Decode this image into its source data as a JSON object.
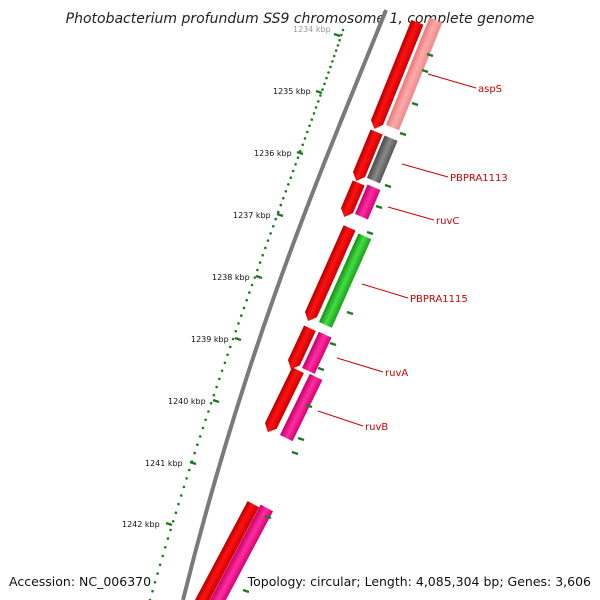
{
  "title": "Photobacterium profundum SS9 chromosome 1, complete genome",
  "accession": "Accession: NC_006370",
  "topology": "Topology: circular; Length: 4,085,304 bp; Genes: 3,606",
  "colors": {
    "backbone": "#7a7a7a",
    "tick": "#1e7a1e",
    "dots": "#1e7a1e",
    "label": "#cc0000",
    "cds_red": "#ff0000",
    "gene_pink": "#ff1a8c",
    "gene_salmon": "#ff9a9a",
    "gene_gray": "#6e6e6e",
    "gene_green": "#22bb22"
  },
  "ticks": [
    {
      "label": "1234 kbp"
    },
    {
      "label": "1235 kbp"
    },
    {
      "label": "1236 kbp"
    },
    {
      "label": "1237 kbp"
    },
    {
      "label": "1238 kbp"
    },
    {
      "label": "1239 kbp"
    },
    {
      "label": "1240 kbp"
    },
    {
      "label": "1241 kbp"
    },
    {
      "label": "1242 kbp"
    }
  ],
  "gene_labels": [
    {
      "name": "aspS"
    },
    {
      "name": "PBPRA1113"
    },
    {
      "name": "ruvC"
    },
    {
      "name": "PBPRA1115"
    },
    {
      "name": "ruvA"
    },
    {
      "name": "ruvB"
    }
  ],
  "tracks": {
    "inner_feature_color": "red",
    "outer_feature_colors": [
      "salmon",
      "gray",
      "pink",
      "green",
      "pink",
      "pink",
      "pink"
    ]
  }
}
